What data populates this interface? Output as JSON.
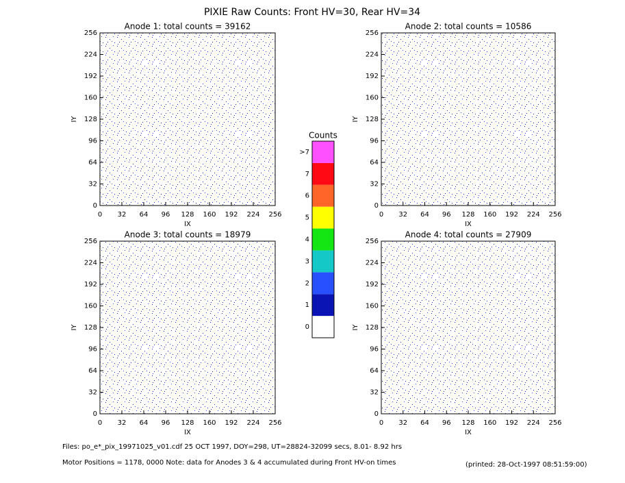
{
  "title": "PIXIE Raw Counts:  Front HV=30, Rear HV=34",
  "chart_data": [
    {
      "type": "heatmap",
      "title": "Anode 1: total counts = 39162",
      "xlabel": "IX",
      "ylabel": "IY",
      "xlim": [
        0,
        256
      ],
      "ylim": [
        0,
        256
      ],
      "xticks": [
        0,
        32,
        64,
        96,
        128,
        160,
        192,
        224,
        256
      ],
      "yticks": [
        0,
        32,
        64,
        96,
        128,
        160,
        192,
        224,
        256
      ]
    },
    {
      "type": "heatmap",
      "title": "Anode 2: total counts = 10586",
      "xlabel": "IX",
      "ylabel": "IY",
      "xlim": [
        0,
        256
      ],
      "ylim": [
        0,
        256
      ],
      "xticks": [
        0,
        32,
        64,
        96,
        128,
        160,
        192,
        224,
        256
      ],
      "yticks": [
        0,
        32,
        64,
        96,
        128,
        160,
        192,
        224,
        256
      ]
    },
    {
      "type": "heatmap",
      "title": "Anode 3: total counts = 18979",
      "xlabel": "IX",
      "ylabel": "IY",
      "xlim": [
        0,
        256
      ],
      "ylim": [
        0,
        256
      ],
      "xticks": [
        0,
        32,
        64,
        96,
        128,
        160,
        192,
        224,
        256
      ],
      "yticks": [
        0,
        32,
        64,
        96,
        128,
        160,
        192,
        224,
        256
      ]
    },
    {
      "type": "heatmap",
      "title": "Anode 4: total counts = 27909",
      "xlabel": "IX",
      "ylabel": "IY",
      "xlim": [
        0,
        256
      ],
      "ylim": [
        0,
        256
      ],
      "xticks": [
        0,
        32,
        64,
        96,
        128,
        160,
        192,
        224,
        256
      ],
      "yticks": [
        0,
        32,
        64,
        96,
        128,
        160,
        192,
        224,
        256
      ]
    }
  ],
  "colorbar": {
    "title": "Counts",
    "labels": [
      "0",
      "1",
      "2",
      "3",
      "4",
      "5",
      "6",
      "7",
      ">7"
    ],
    "colors": [
      "#ffffff",
      "#0a14b4",
      "#2850ff",
      "#14c8c8",
      "#14e614",
      "#ffff00",
      "#ff6428",
      "#ff0a14",
      "#ff50ff"
    ]
  },
  "footer": {
    "files": "Files: po_e*_pix_19971025_v01.cdf    25 OCT 1997, DOY=298, UT=28824-32099 secs,  8.01- 8.92 hrs",
    "motor": "Motor Positions = 1178, 0000    Note: data for Anodes 3 & 4 accumulated during Front HV-on times",
    "printed": "(printed: 28-Oct-1997 08:51:59:00)"
  }
}
